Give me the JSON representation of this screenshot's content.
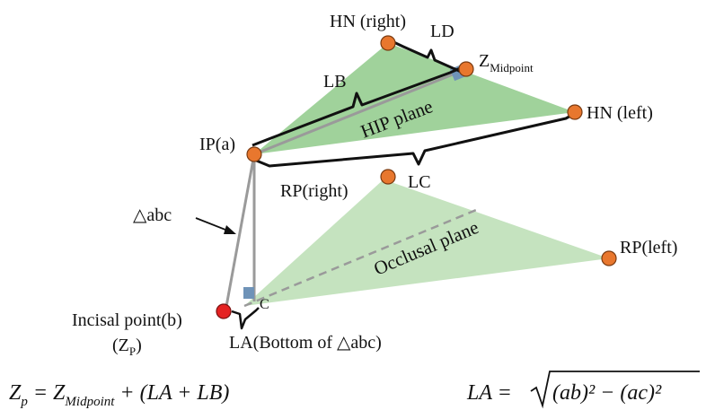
{
  "labels": {
    "hn_right": "HN (right)",
    "ld": "LD",
    "z_mid_main": "Z",
    "z_mid_sub": "Midpoint",
    "lb": "LB",
    "hip_plane": "HIP plane",
    "hn_left": "HN (left)",
    "ip_a": "IP(a)",
    "lc": "LC",
    "rp_right": "RP(right)",
    "triangle_abc": "△abc",
    "occlusal_plane": "Occlusal plane",
    "rp_left": "RP(left)",
    "c_label": "C",
    "incisal_point": "Incisal point(b)",
    "zp_open": "(Z",
    "zp_sub": "P",
    "zp_close": ")",
    "la_bottom": "LA(Bottom of △abc)"
  },
  "equations": {
    "left": {
      "lhs": "Z",
      "lhs_sub": "p",
      "rhs_start": " = Z",
      "rhs_sub": "Midpoint",
      "rhs_end": " + (LA + LB)"
    },
    "right": {
      "lhs": "LA = ",
      "radicand": "(ab)² − (ac)²"
    }
  },
  "colors": {
    "hip_plane_fill": "#8fca8a",
    "occlusal_plane_fill": "#b7dcb0",
    "landmark_point": "#e8772e",
    "incisal_point": "#e52222",
    "right_angle_marker": "#6f93b8",
    "grey_line": "#9a9a9a"
  }
}
